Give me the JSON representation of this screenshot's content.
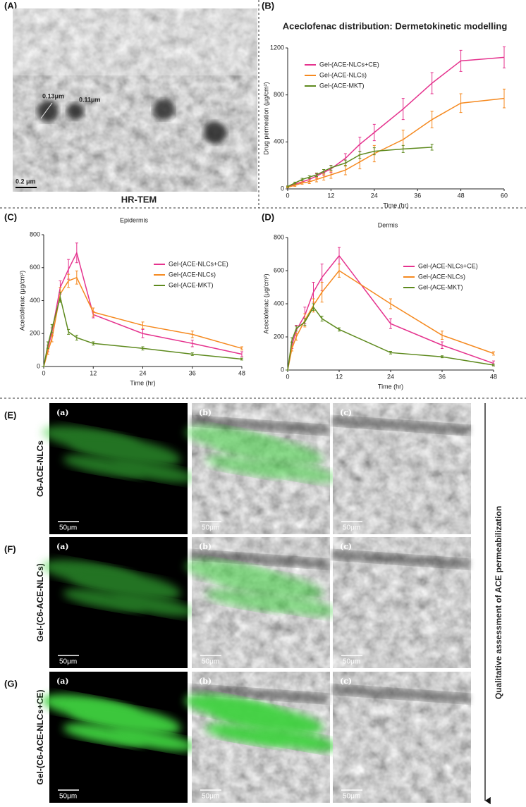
{
  "chart_data": [
    {
      "type": "line",
      "panel": "(B)",
      "title": "Aceclofenac distribution: Dermetokinetic modelling",
      "x_label": "Time (hr)",
      "y_label": "Drug permeation (μg/cm²)",
      "x": [
        0,
        2,
        4,
        6,
        8,
        10,
        12,
        16,
        20,
        24,
        32,
        40,
        48,
        60
      ],
      "xlim": [
        0,
        60
      ],
      "xticks": [
        0,
        12,
        24,
        36,
        48,
        60
      ],
      "ylim": [
        0,
        1200
      ],
      "yticks": [
        0,
        400,
        800,
        1200
      ],
      "legend": "upper left",
      "series": [
        {
          "name": "Gel-(ACE-NLCs+CE)",
          "color": "#e5338e",
          "values": [
            20,
            40,
            60,
            80,
            110,
            140,
            170,
            260,
            380,
            480,
            680,
            900,
            1090,
            1120
          ],
          "errors": [
            5,
            8,
            10,
            15,
            20,
            25,
            30,
            40,
            60,
            70,
            90,
            90,
            90,
            90
          ]
        },
        {
          "name": "Gel-(ACE-NLCs)",
          "color": "#f5891f",
          "values": [
            15,
            30,
            50,
            60,
            80,
            100,
            120,
            160,
            230,
            300,
            420,
            590,
            730,
            770
          ],
          "errors": [
            5,
            8,
            10,
            15,
            20,
            25,
            30,
            40,
            60,
            70,
            80,
            70,
            80,
            80
          ]
        },
        {
          "name": "Gel-(ACE-MKT)",
          "color": "#5e8a1e",
          "values": [
            20,
            50,
            80,
            100,
            120,
            150,
            180,
            220,
            290,
            320,
            340,
            355,
            null,
            null
          ],
          "errors": [
            5,
            8,
            10,
            12,
            15,
            15,
            20,
            25,
            30,
            30,
            30,
            25,
            null,
            null
          ]
        }
      ]
    },
    {
      "type": "line",
      "panel": "(C)",
      "title": "Epidermis",
      "x_label": "Time (hr)",
      "y_label": "Aceclofenac (μg/cm²)",
      "x": [
        0,
        1,
        2,
        4,
        6,
        8,
        12,
        24,
        36,
        48
      ],
      "xlim": [
        0,
        48
      ],
      "xticks": [
        0,
        12,
        24,
        36,
        48
      ],
      "ylim": [
        0,
        800
      ],
      "yticks": [
        0,
        200,
        400,
        600,
        800
      ],
      "legend": "center right",
      "series": [
        {
          "name": "Gel-(ACE-NLCs+CE)",
          "color": "#e5338e",
          "values": [
            0,
            110,
            210,
            480,
            590,
            690,
            315,
            200,
            140,
            75
          ],
          "errors": [
            0,
            20,
            25,
            40,
            60,
            60,
            20,
            25,
            20,
            15
          ]
        },
        {
          "name": "Gel-(ACE-NLCs)",
          "color": "#f5891f",
          "values": [
            0,
            90,
            170,
            440,
            520,
            540,
            330,
            250,
            195,
            110
          ],
          "errors": [
            0,
            15,
            20,
            40,
            40,
            40,
            25,
            20,
            20,
            10
          ]
        },
        {
          "name": "Gel-(ACE-MKT)",
          "color": "#5e8a1e",
          "values": [
            0,
            130,
            230,
            420,
            210,
            175,
            140,
            110,
            75,
            45
          ],
          "errors": [
            0,
            20,
            25,
            30,
            15,
            15,
            10,
            10,
            8,
            6
          ]
        }
      ]
    },
    {
      "type": "line",
      "panel": "(D)",
      "title": "Dermis",
      "x_label": "Time (hr)",
      "y_label": "Aceclofenac (μg/cm²)",
      "x": [
        0,
        1,
        2,
        4,
        6,
        8,
        12,
        24,
        36,
        48
      ],
      "xlim": [
        0,
        48
      ],
      "xticks": [
        0,
        12,
        24,
        36,
        48
      ],
      "ylim": [
        0,
        800
      ],
      "yticks": [
        0,
        200,
        400,
        600,
        800
      ],
      "legend": "center right",
      "series": [
        {
          "name": "Gel-(ACE-NLCs+CE)",
          "color": "#e5338e",
          "values": [
            0,
            150,
            240,
            330,
            470,
            560,
            690,
            280,
            150,
            40
          ],
          "errors": [
            0,
            20,
            30,
            50,
            60,
            80,
            50,
            30,
            20,
            15
          ]
        },
        {
          "name": "Gel-(ACE-NLCs)",
          "color": "#f5891f",
          "values": [
            0,
            130,
            200,
            300,
            390,
            470,
            600,
            400,
            210,
            100
          ],
          "errors": [
            0,
            15,
            20,
            40,
            40,
            60,
            40,
            30,
            25,
            10
          ]
        },
        {
          "name": "Gel-(ACE-MKT)",
          "color": "#5e8a1e",
          "values": [
            0,
            180,
            250,
            290,
            380,
            310,
            245,
            105,
            80,
            30
          ],
          "errors": [
            0,
            15,
            15,
            20,
            20,
            15,
            10,
            8,
            6,
            5
          ]
        }
      ]
    }
  ],
  "tem": {
    "panel": "(A)",
    "size_labels": [
      "0.13μm",
      "0.11μm"
    ],
    "scale_bar": "0.2 μm",
    "caption": "HR-TEM"
  },
  "confocal": {
    "rows": [
      {
        "panel": "(E)",
        "name": "C6-ACE-NLCs"
      },
      {
        "panel": "(F)",
        "name": "Gel-(C6-ACE-NLCs)"
      },
      {
        "panel": "(G)",
        "name": "Gel-(C6-ACE-NLCs+CE)"
      }
    ],
    "subpanels": [
      "(a)",
      "(b)",
      "(c)"
    ],
    "scale_bar": "50μm",
    "arrow_label": "Qualitative assessment of ACE permeabilization"
  }
}
